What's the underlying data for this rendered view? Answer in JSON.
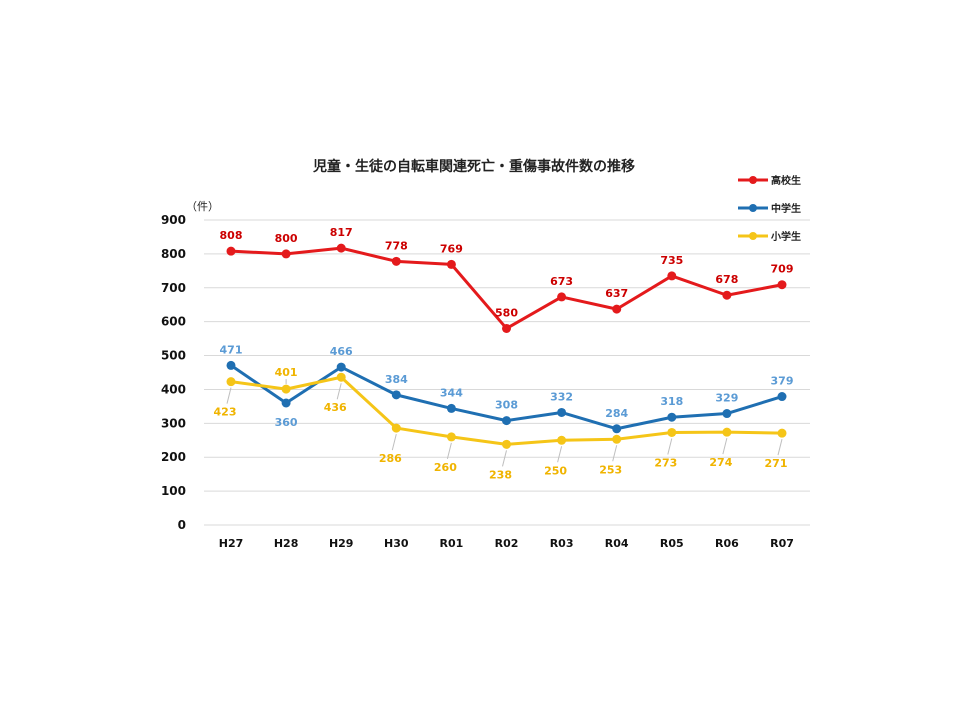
{
  "chart_data": {
    "type": "line",
    "title": "児童・生徒の自転車関連死亡・重傷事故件数の推移",
    "yunit": "（件）",
    "categories": [
      "H27",
      "H28",
      "H29",
      "H30",
      "R01",
      "R02",
      "R03",
      "R04",
      "R05",
      "R06",
      "R07"
    ],
    "ylim": [
      0,
      900
    ],
    "yticks": [
      0,
      100,
      200,
      300,
      400,
      500,
      600,
      700,
      800,
      900
    ],
    "grid": true,
    "legend": "top-right",
    "series": [
      {
        "name": "高校生",
        "color": "#e41a1c",
        "label_color": "#cc0000",
        "values": [
          808,
          800,
          817,
          778,
          769,
          580,
          673,
          637,
          735,
          678,
          709
        ]
      },
      {
        "name": "中学生",
        "color": "#1f6fb2",
        "label_color": "#5b9bd5",
        "values": [
          471,
          360,
          466,
          384,
          344,
          308,
          332,
          284,
          318,
          329,
          379
        ]
      },
      {
        "name": "小学生",
        "color": "#f5c518",
        "label_color": "#f0b400",
        "values": [
          423,
          401,
          436,
          286,
          260,
          238,
          250,
          253,
          273,
          274,
          271
        ]
      }
    ]
  }
}
